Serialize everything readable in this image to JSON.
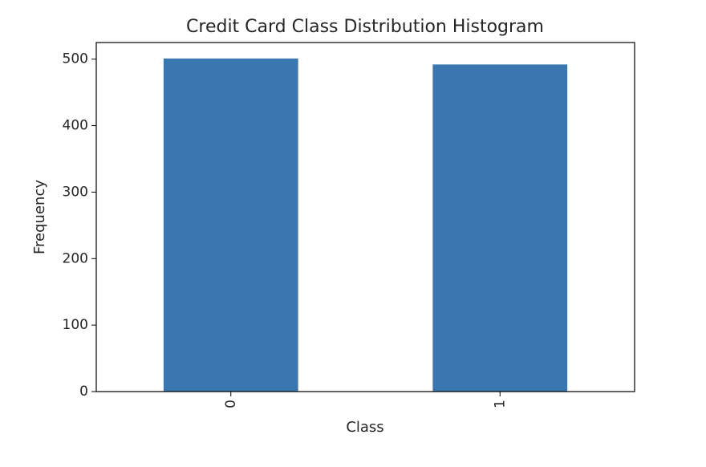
{
  "chart_data": {
    "type": "bar",
    "title": "Credit Card Class Distribution Histogram",
    "xlabel": "Class",
    "ylabel": "Frequency",
    "categories": [
      "0",
      "1"
    ],
    "values": [
      501,
      492
    ],
    "ylim": [
      0,
      525
    ],
    "yticks": [
      0,
      100,
      200,
      300,
      400,
      500
    ],
    "bar_color": "#3a76af",
    "grid": false,
    "legend": "none",
    "xtick_rotation": "vertical"
  }
}
